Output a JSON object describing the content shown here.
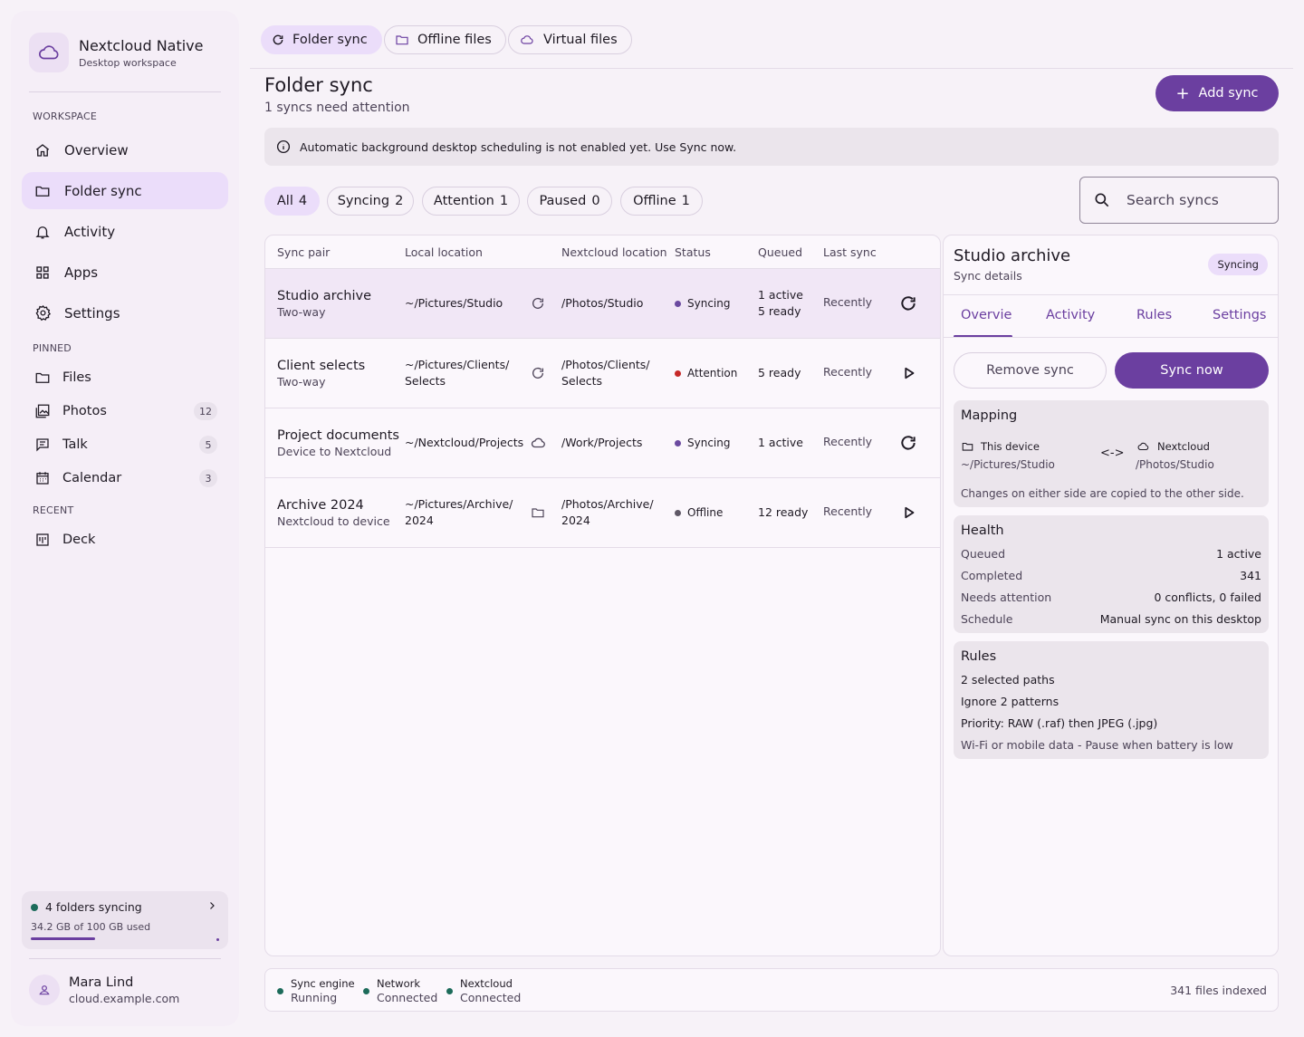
{
  "colors": {
    "accent": "#6b3fa0",
    "accent_container": "#ebddfa",
    "status_syncing": "#6b4aa0",
    "status_attention": "#c62828",
    "status_offline": "#5f5866",
    "status_ok": "#1c6b5a"
  },
  "brand": {
    "title": "Nextcloud Native",
    "subtitle": "Desktop workspace",
    "icon": "cloud-icon"
  },
  "sidebar": {
    "workspace_label": "WORKSPACE",
    "items": [
      {
        "label": "Overview",
        "icon": "home-icon"
      },
      {
        "label": "Folder sync",
        "icon": "folder-icon",
        "active": true
      },
      {
        "label": "Activity",
        "icon": "bell-icon"
      },
      {
        "label": "Apps",
        "icon": "apps-grid-icon"
      },
      {
        "label": "Settings",
        "icon": "gear-icon"
      }
    ],
    "pinned_label": "PINNED",
    "pinned": [
      {
        "label": "Files",
        "icon": "folder-icon",
        "badge": ""
      },
      {
        "label": "Photos",
        "icon": "photos-icon",
        "badge": "12"
      },
      {
        "label": "Talk",
        "icon": "chat-icon",
        "badge": "5"
      },
      {
        "label": "Calendar",
        "icon": "calendar-icon",
        "badge": "3"
      }
    ],
    "recent_label": "RECENT",
    "recent": [
      {
        "label": "Deck",
        "icon": "deck-icon"
      }
    ],
    "storage": {
      "status": "4 folders syncing",
      "usage": "34.2 GB of 100 GB used",
      "used_fraction": 0.342
    },
    "user": {
      "name": "Mara Lind",
      "host": "cloud.example.com"
    }
  },
  "top_tabs": [
    {
      "label": "Folder sync",
      "icon": "refresh-icon",
      "active": true
    },
    {
      "label": "Offline files",
      "icon": "folder-icon"
    },
    {
      "label": "Virtual files",
      "icon": "cloud-icon"
    }
  ],
  "header": {
    "title": "Folder sync",
    "subtitle": "1 syncs need attention",
    "add_button": "Add sync",
    "banner": "Automatic background desktop scheduling is not enabled yet. Use Sync now."
  },
  "filters": [
    {
      "label": "All",
      "count": "4",
      "active": true
    },
    {
      "label": "Syncing",
      "count": "2"
    },
    {
      "label": "Attention",
      "count": "1"
    },
    {
      "label": "Paused",
      "count": "0"
    },
    {
      "label": "Offline",
      "count": "1"
    }
  ],
  "search": {
    "placeholder": "Search syncs"
  },
  "table": {
    "headers": [
      "Sync pair",
      "Local location",
      "Nextcloud location",
      "Status",
      "Queued",
      "Last sync"
    ],
    "rows": [
      {
        "name": "Studio archive",
        "mode": "Two-way",
        "local1": "~/Pictures/Studio",
        "local2": "",
        "direction_icon": "refresh-icon",
        "remote1": "/Photos/Studio",
        "remote2": "",
        "status": "Syncing",
        "status_color": "#6b4aa0",
        "queued1": "1 active",
        "queued2": "5 ready",
        "last": "Recently",
        "action_icon": "refresh-icon",
        "selected": true
      },
      {
        "name": "Client selects",
        "mode": "Two-way",
        "local1": "~/Pictures/Clients/",
        "local2": "Selects",
        "direction_icon": "refresh-icon",
        "remote1": "/Photos/Clients/",
        "remote2": "Selects",
        "status": "Attention",
        "status_color": "#c62828",
        "queued1": "5 ready",
        "queued2": "",
        "last": "Recently",
        "action_icon": "play-icon"
      },
      {
        "name": "Project documents",
        "mode": "Device to Nextcloud",
        "local1": "~/Nextcloud/Projects",
        "local2": "",
        "direction_icon": "cloud-icon",
        "remote1": "/Work/Projects",
        "remote2": "",
        "status": "Syncing",
        "status_color": "#6b4aa0",
        "queued1": "1 active",
        "queued2": "",
        "last": "Recently",
        "action_icon": "refresh-icon"
      },
      {
        "name": "Archive 2024",
        "mode": "Nextcloud to device",
        "local1": "~/Pictures/Archive/",
        "local2": "2024",
        "direction_icon": "folder-icon",
        "remote1": "/Photos/Archive/",
        "remote2": "2024",
        "status": "Offline",
        "status_color": "#5f5866",
        "queued1": "12 ready",
        "queued2": "",
        "last": "Recently",
        "action_icon": "play-icon"
      }
    ]
  },
  "detail": {
    "title": "Studio archive",
    "subtitle": "Sync details",
    "badge": "Syncing",
    "tabs": [
      "Overvie",
      "Activity",
      "Rules",
      "Settings"
    ],
    "remove_button": "Remove sync",
    "sync_button": "Sync now",
    "mapping": {
      "title": "Mapping",
      "left_label": "This device",
      "left_path": "~/Pictures/Studio",
      "arrow": "<->",
      "right_label": "Nextcloud",
      "right_path": "/Photos/Studio",
      "note": "Changes on either side are copied to the other side."
    },
    "health": {
      "title": "Health",
      "rows": [
        {
          "key": "Queued",
          "value": "1 active"
        },
        {
          "key": "Completed",
          "value": "341"
        },
        {
          "key": "Needs attention",
          "value": "0 conflicts, 0 failed"
        },
        {
          "key": "Schedule",
          "value": "Manual sync on this desktop"
        }
      ]
    },
    "rules": {
      "title": "Rules",
      "lines": [
        "2 selected paths",
        "Ignore 2 patterns",
        "Priority: RAW (.raf) then JPEG (.jpg)",
        "Wi-Fi or mobile data - Pause when battery is low"
      ]
    }
  },
  "footer": {
    "items": [
      {
        "label": "Sync engine",
        "value": "Running"
      },
      {
        "label": "Network",
        "value": "Connected"
      },
      {
        "label": "Nextcloud",
        "value": "Connected"
      }
    ],
    "right": "341 files indexed"
  }
}
